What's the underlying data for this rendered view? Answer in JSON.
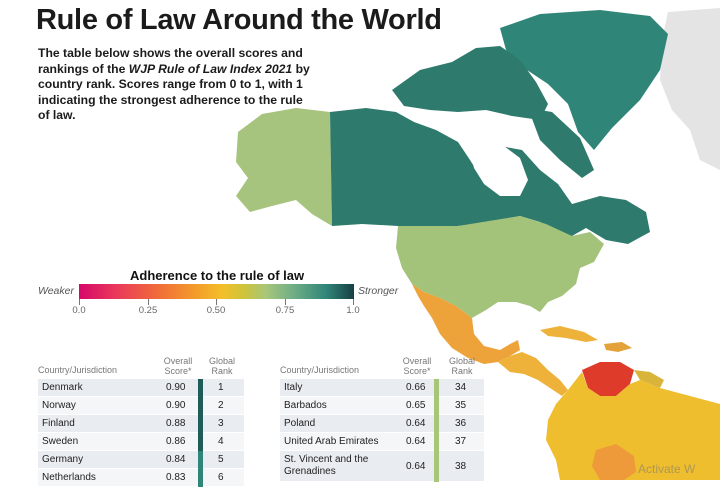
{
  "title": "Rule of Law Around the World",
  "intro": {
    "part1": "The table below shows the overall scores and rankings of the ",
    "index_name": "WJP Rule of Law Index 2021",
    "part2": " by country rank. Scores range from 0 to 1, with 1 indicating the strongest adherence to the rule of law."
  },
  "legend": {
    "title": "Adherence to the rule of law",
    "weaker": "Weaker",
    "stronger": "Stronger",
    "ticks": [
      "0.0",
      "0.25",
      "0.50",
      "0.75",
      "1.0"
    ],
    "colors": [
      "#d6086a",
      "#f06a3a",
      "#f3bf2a",
      "#a8c67a",
      "#2f8577",
      "#173f44"
    ]
  },
  "table_headers": {
    "country": "Country/Jurisdiction",
    "score": "Overall Score*",
    "rank": "Global Rank"
  },
  "table_left": [
    {
      "country": "Denmark",
      "score": "0.90",
      "rank": "1"
    },
    {
      "country": "Norway",
      "score": "0.90",
      "rank": "2"
    },
    {
      "country": "Finland",
      "score": "0.88",
      "rank": "3"
    },
    {
      "country": "Sweden",
      "score": "0.86",
      "rank": "4"
    },
    {
      "country": "Germany",
      "score": "0.84",
      "rank": "5"
    },
    {
      "country": "Netherlands",
      "score": "0.83",
      "rank": "6"
    }
  ],
  "table_right": [
    {
      "country": "Italy",
      "score": "0.66",
      "rank": "34"
    },
    {
      "country": "Barbados",
      "score": "0.65",
      "rank": "35"
    },
    {
      "country": "Poland",
      "score": "0.64",
      "rank": "36"
    },
    {
      "country": "United Arab Emirates",
      "score": "0.64",
      "rank": "37"
    },
    {
      "country": "St. Vincent and the Grenadines",
      "score": "0.64",
      "rank": "38"
    }
  ],
  "watermark": "Activate W",
  "map_colors": {
    "canada": "#2e7a6c",
    "alaska": "#a7c47e",
    "greenland": "#2f8577",
    "usa": "#a3c27a",
    "mexico": "#eda33a",
    "central_america": "#eeb23a",
    "venezuela": "#de3b2b",
    "south_america": "#eebe2e",
    "bolivia": "#ef9a3a",
    "europe": "#e2e2e2"
  }
}
